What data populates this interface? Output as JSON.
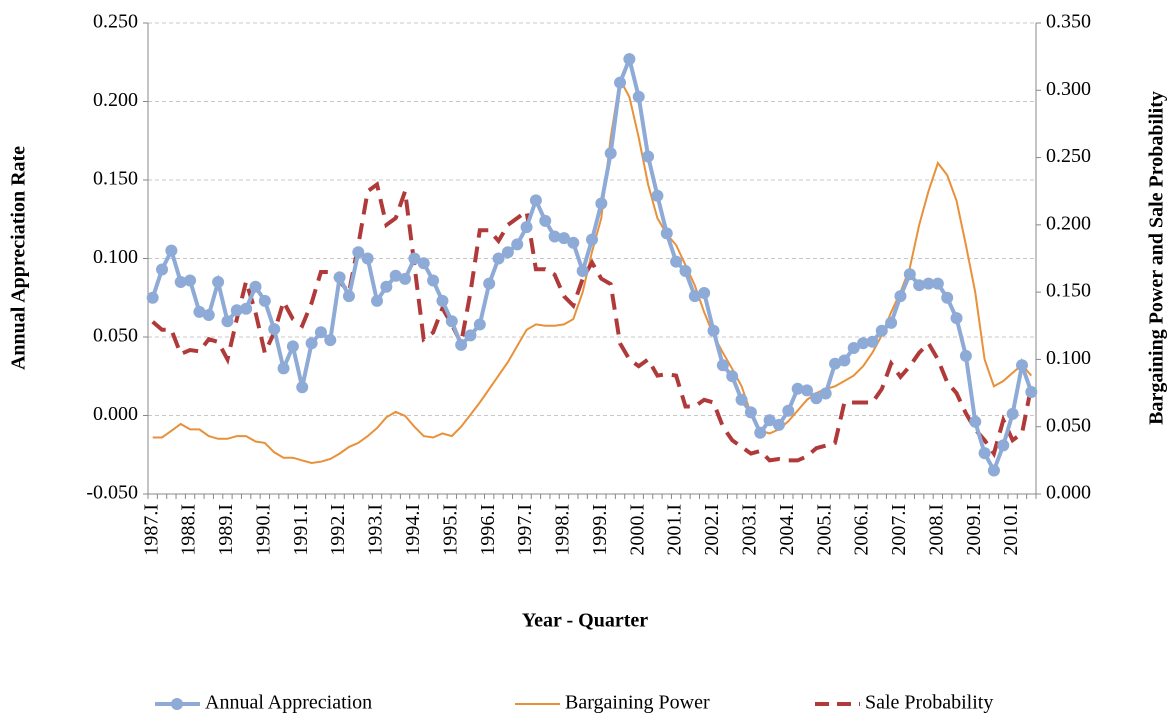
{
  "chart_data": {
    "type": "line",
    "x_label": "Year - Quarter",
    "y_label": "Annual Appreciation Rate",
    "y2_label": "Bargaining Power and Sale Probability",
    "categories": [
      "1987.I",
      null,
      null,
      null,
      "1988.I",
      null,
      null,
      null,
      "1989.I",
      null,
      null,
      null,
      "1990.I",
      null,
      null,
      null,
      "1991.I",
      null,
      null,
      null,
      "1992.I",
      null,
      null,
      null,
      "1993.I",
      null,
      null,
      null,
      "1994.I",
      null,
      null,
      null,
      "1995.I",
      null,
      null,
      null,
      "1996.I",
      null,
      null,
      null,
      "1997.I",
      null,
      null,
      null,
      "1998.I",
      null,
      null,
      null,
      "1999.I",
      null,
      null,
      null,
      "2000.I",
      null,
      null,
      null,
      "2001.I",
      null,
      null,
      null,
      "2002.I",
      null,
      null,
      null,
      "2003.I",
      null,
      null,
      null,
      "2004.I",
      null,
      null,
      null,
      "2005.I",
      null,
      null,
      null,
      "2006.I",
      null,
      null,
      null,
      "2007.I",
      null,
      null,
      null,
      "2008.I",
      null,
      null,
      null,
      "2009.I",
      null,
      null,
      null,
      "2010.I",
      null,
      null
    ],
    "ylim": [
      -0.05,
      0.25
    ],
    "yticks": [
      {
        "value": -0.05,
        "label": "-0.050"
      },
      {
        "value": 0,
        "label": "0.000"
      },
      {
        "value": 0.05,
        "label": "0.050"
      },
      {
        "value": 0.1,
        "label": "0.100"
      },
      {
        "value": 0.15,
        "label": "0.150"
      },
      {
        "value": 0.2,
        "label": "0.200"
      },
      {
        "value": 0.25,
        "label": "0.250"
      }
    ],
    "y2lim": [
      0,
      0.35
    ],
    "y2ticks": [
      {
        "value": 0,
        "label": "0.000"
      },
      {
        "value": 0.05,
        "label": "0.050"
      },
      {
        "value": 0.1,
        "label": "0.100"
      },
      {
        "value": 0.15,
        "label": "0.150"
      },
      {
        "value": 0.2,
        "label": "0.200"
      },
      {
        "value": 0.25,
        "label": "0.250"
      },
      {
        "value": 0.3,
        "label": "0.300"
      },
      {
        "value": 0.35,
        "label": "0.350"
      }
    ],
    "grid": true,
    "legend": "bottom",
    "series": [
      {
        "name": "Annual Appreciation",
        "color": "#8eaad6",
        "style": "markers",
        "values": [
          0.075,
          0.093,
          0.105,
          0.085,
          0.086,
          0.066,
          0.064,
          0.085,
          0.06,
          0.067,
          0.068,
          0.082,
          0.073,
          0.055,
          0.03,
          0.044,
          0.018,
          0.046,
          0.053,
          0.048,
          0.088,
          0.076,
          0.104,
          0.1,
          0.073,
          0.082,
          0.089,
          0.087,
          0.1,
          0.097,
          0.086,
          0.073,
          0.06,
          0.045,
          0.051,
          0.058,
          0.084,
          0.1,
          0.104,
          0.109,
          0.12,
          0.137,
          0.124,
          0.114,
          0.113,
          0.11,
          0.092,
          0.112,
          0.135,
          0.167,
          0.212,
          0.227,
          0.203,
          0.165,
          0.14,
          0.116,
          0.098,
          0.092,
          0.076,
          0.078,
          0.054,
          0.032,
          0.025,
          0.01,
          0.002,
          -0.011,
          -0.003,
          -0.006,
          0.003,
          0.017,
          0.016,
          0.011,
          0.014,
          0.033,
          0.035,
          0.043,
          0.046,
          0.047,
          0.054,
          0.059,
          0.076,
          0.09,
          0.083,
          0.084,
          0.084,
          0.075,
          0.062,
          0.038,
          -0.004,
          -0.024,
          -0.035,
          -0.019,
          0.001,
          0.032,
          0.015
        ]
      },
      {
        "name": "Bargaining Power",
        "color": "#e8913a",
        "style": "solid",
        "axis": "y2",
        "values": [
          0.042,
          0.042,
          0.047,
          0.052,
          0.048,
          0.048,
          0.043,
          0.041,
          0.041,
          0.043,
          0.043,
          0.039,
          0.038,
          0.031,
          0.027,
          0.027,
          0.025,
          0.023,
          0.024,
          0.026,
          0.03,
          0.035,
          0.038,
          0.043,
          0.049,
          0.057,
          0.061,
          0.058,
          0.05,
          0.043,
          0.042,
          0.045,
          0.043,
          0.05,
          0.059,
          0.068,
          0.078,
          0.088,
          0.098,
          0.11,
          0.122,
          0.126,
          0.125,
          0.125,
          0.126,
          0.13,
          0.15,
          0.18,
          0.205,
          0.265,
          0.308,
          0.295,
          0.265,
          0.23,
          0.205,
          0.193,
          0.185,
          0.17,
          0.155,
          0.135,
          0.118,
          0.105,
          0.093,
          0.08,
          0.06,
          0.047,
          0.045,
          0.048,
          0.054,
          0.062,
          0.07,
          0.075,
          0.078,
          0.08,
          0.084,
          0.088,
          0.095,
          0.105,
          0.118,
          0.135,
          0.15,
          0.168,
          0.2,
          0.225,
          0.246,
          0.237,
          0.218,
          0.185,
          0.15,
          0.1,
          0.08,
          0.084,
          0.09,
          0.096,
          0.088
        ]
      },
      {
        "name": "Sale Probability",
        "color": "#b03a3a",
        "style": "dashed",
        "axis": "y2",
        "values": [
          0.128,
          0.122,
          0.122,
          0.104,
          0.107,
          0.106,
          0.115,
          0.113,
          0.1,
          0.13,
          0.158,
          0.135,
          0.105,
          0.12,
          0.143,
          0.13,
          0.125,
          0.142,
          0.165,
          0.165,
          0.158,
          0.15,
          0.185,
          0.225,
          0.23,
          0.2,
          0.205,
          0.225,
          0.17,
          0.115,
          0.12,
          0.138,
          0.126,
          0.112,
          0.15,
          0.196,
          0.196,
          0.188,
          0.2,
          0.205,
          0.21,
          0.167,
          0.167,
          0.163,
          0.147,
          0.14,
          0.16,
          0.172,
          0.16,
          0.156,
          0.112,
          0.1,
          0.095,
          0.1,
          0.088,
          0.089,
          0.088,
          0.065,
          0.065,
          0.07,
          0.068,
          0.05,
          0.04,
          0.035,
          0.03,
          0.032,
          0.025,
          0.026,
          0.025,
          0.025,
          0.028,
          0.034,
          0.036,
          0.038,
          0.068,
          0.068,
          0.068,
          0.068,
          0.078,
          0.097,
          0.087,
          0.095,
          0.105,
          0.112,
          0.1,
          0.083,
          0.075,
          0.06,
          0.048,
          0.04,
          0.03,
          0.055,
          0.04,
          0.045,
          0.08
        ]
      }
    ]
  }
}
